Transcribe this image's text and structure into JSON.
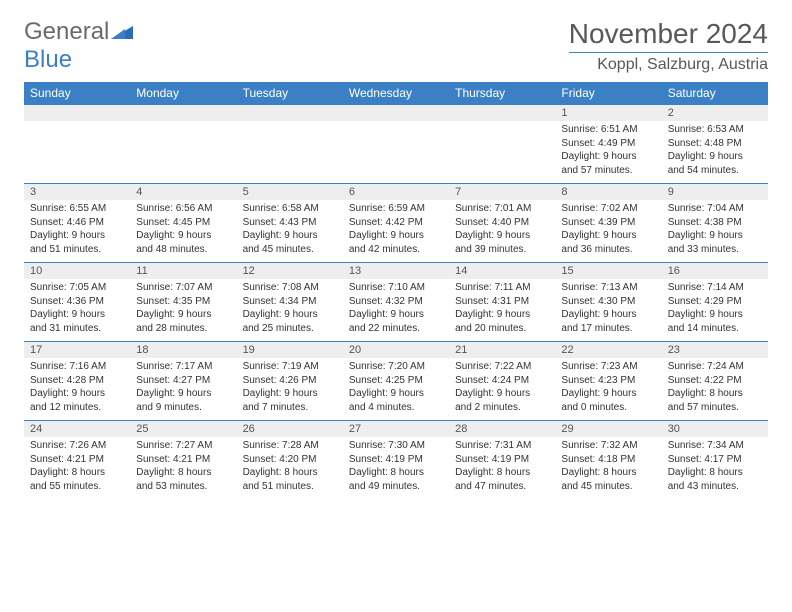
{
  "logo": {
    "part1": "General",
    "part2": "Blue"
  },
  "title": "November 2024",
  "location": "Koppl, Salzburg, Austria",
  "colors": {
    "header_bg": "#3b7fc4",
    "header_text": "#ffffff",
    "num_bg": "#eeeeee",
    "text": "#333333",
    "title": "#585858"
  },
  "weekdays": [
    "Sunday",
    "Monday",
    "Tuesday",
    "Wednesday",
    "Thursday",
    "Friday",
    "Saturday"
  ],
  "weeks": [
    [
      null,
      null,
      null,
      null,
      null,
      {
        "n": "1",
        "sr": "Sunrise: 6:51 AM",
        "ss": "Sunset: 4:49 PM",
        "d1": "Daylight: 9 hours",
        "d2": "and 57 minutes."
      },
      {
        "n": "2",
        "sr": "Sunrise: 6:53 AM",
        "ss": "Sunset: 4:48 PM",
        "d1": "Daylight: 9 hours",
        "d2": "and 54 minutes."
      }
    ],
    [
      {
        "n": "3",
        "sr": "Sunrise: 6:55 AM",
        "ss": "Sunset: 4:46 PM",
        "d1": "Daylight: 9 hours",
        "d2": "and 51 minutes."
      },
      {
        "n": "4",
        "sr": "Sunrise: 6:56 AM",
        "ss": "Sunset: 4:45 PM",
        "d1": "Daylight: 9 hours",
        "d2": "and 48 minutes."
      },
      {
        "n": "5",
        "sr": "Sunrise: 6:58 AM",
        "ss": "Sunset: 4:43 PM",
        "d1": "Daylight: 9 hours",
        "d2": "and 45 minutes."
      },
      {
        "n": "6",
        "sr": "Sunrise: 6:59 AM",
        "ss": "Sunset: 4:42 PM",
        "d1": "Daylight: 9 hours",
        "d2": "and 42 minutes."
      },
      {
        "n": "7",
        "sr": "Sunrise: 7:01 AM",
        "ss": "Sunset: 4:40 PM",
        "d1": "Daylight: 9 hours",
        "d2": "and 39 minutes."
      },
      {
        "n": "8",
        "sr": "Sunrise: 7:02 AM",
        "ss": "Sunset: 4:39 PM",
        "d1": "Daylight: 9 hours",
        "d2": "and 36 minutes."
      },
      {
        "n": "9",
        "sr": "Sunrise: 7:04 AM",
        "ss": "Sunset: 4:38 PM",
        "d1": "Daylight: 9 hours",
        "d2": "and 33 minutes."
      }
    ],
    [
      {
        "n": "10",
        "sr": "Sunrise: 7:05 AM",
        "ss": "Sunset: 4:36 PM",
        "d1": "Daylight: 9 hours",
        "d2": "and 31 minutes."
      },
      {
        "n": "11",
        "sr": "Sunrise: 7:07 AM",
        "ss": "Sunset: 4:35 PM",
        "d1": "Daylight: 9 hours",
        "d2": "and 28 minutes."
      },
      {
        "n": "12",
        "sr": "Sunrise: 7:08 AM",
        "ss": "Sunset: 4:34 PM",
        "d1": "Daylight: 9 hours",
        "d2": "and 25 minutes."
      },
      {
        "n": "13",
        "sr": "Sunrise: 7:10 AM",
        "ss": "Sunset: 4:32 PM",
        "d1": "Daylight: 9 hours",
        "d2": "and 22 minutes."
      },
      {
        "n": "14",
        "sr": "Sunrise: 7:11 AM",
        "ss": "Sunset: 4:31 PM",
        "d1": "Daylight: 9 hours",
        "d2": "and 20 minutes."
      },
      {
        "n": "15",
        "sr": "Sunrise: 7:13 AM",
        "ss": "Sunset: 4:30 PM",
        "d1": "Daylight: 9 hours",
        "d2": "and 17 minutes."
      },
      {
        "n": "16",
        "sr": "Sunrise: 7:14 AM",
        "ss": "Sunset: 4:29 PM",
        "d1": "Daylight: 9 hours",
        "d2": "and 14 minutes."
      }
    ],
    [
      {
        "n": "17",
        "sr": "Sunrise: 7:16 AM",
        "ss": "Sunset: 4:28 PM",
        "d1": "Daylight: 9 hours",
        "d2": "and 12 minutes."
      },
      {
        "n": "18",
        "sr": "Sunrise: 7:17 AM",
        "ss": "Sunset: 4:27 PM",
        "d1": "Daylight: 9 hours",
        "d2": "and 9 minutes."
      },
      {
        "n": "19",
        "sr": "Sunrise: 7:19 AM",
        "ss": "Sunset: 4:26 PM",
        "d1": "Daylight: 9 hours",
        "d2": "and 7 minutes."
      },
      {
        "n": "20",
        "sr": "Sunrise: 7:20 AM",
        "ss": "Sunset: 4:25 PM",
        "d1": "Daylight: 9 hours",
        "d2": "and 4 minutes."
      },
      {
        "n": "21",
        "sr": "Sunrise: 7:22 AM",
        "ss": "Sunset: 4:24 PM",
        "d1": "Daylight: 9 hours",
        "d2": "and 2 minutes."
      },
      {
        "n": "22",
        "sr": "Sunrise: 7:23 AM",
        "ss": "Sunset: 4:23 PM",
        "d1": "Daylight: 9 hours",
        "d2": "and 0 minutes."
      },
      {
        "n": "23",
        "sr": "Sunrise: 7:24 AM",
        "ss": "Sunset: 4:22 PM",
        "d1": "Daylight: 8 hours",
        "d2": "and 57 minutes."
      }
    ],
    [
      {
        "n": "24",
        "sr": "Sunrise: 7:26 AM",
        "ss": "Sunset: 4:21 PM",
        "d1": "Daylight: 8 hours",
        "d2": "and 55 minutes."
      },
      {
        "n": "25",
        "sr": "Sunrise: 7:27 AM",
        "ss": "Sunset: 4:21 PM",
        "d1": "Daylight: 8 hours",
        "d2": "and 53 minutes."
      },
      {
        "n": "26",
        "sr": "Sunrise: 7:28 AM",
        "ss": "Sunset: 4:20 PM",
        "d1": "Daylight: 8 hours",
        "d2": "and 51 minutes."
      },
      {
        "n": "27",
        "sr": "Sunrise: 7:30 AM",
        "ss": "Sunset: 4:19 PM",
        "d1": "Daylight: 8 hours",
        "d2": "and 49 minutes."
      },
      {
        "n": "28",
        "sr": "Sunrise: 7:31 AM",
        "ss": "Sunset: 4:19 PM",
        "d1": "Daylight: 8 hours",
        "d2": "and 47 minutes."
      },
      {
        "n": "29",
        "sr": "Sunrise: 7:32 AM",
        "ss": "Sunset: 4:18 PM",
        "d1": "Daylight: 8 hours",
        "d2": "and 45 minutes."
      },
      {
        "n": "30",
        "sr": "Sunrise: 7:34 AM",
        "ss": "Sunset: 4:17 PM",
        "d1": "Daylight: 8 hours",
        "d2": "and 43 minutes."
      }
    ]
  ]
}
